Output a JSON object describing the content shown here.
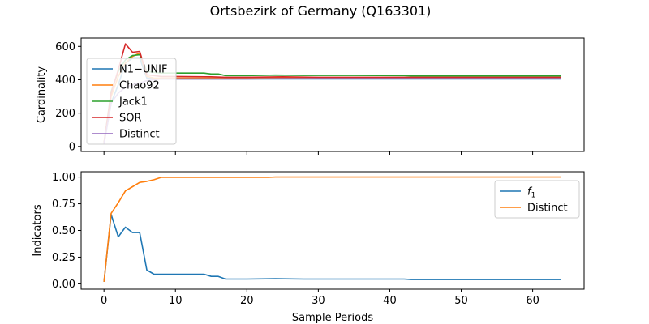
{
  "figure": {
    "suptitle": "Ortsbezirk of Germany (Q163301)"
  },
  "chart_data": [
    {
      "type": "line",
      "ylabel": "Cardinality",
      "xlim": [
        -3.2,
        67.2
      ],
      "ylim": [
        -30,
        650
      ],
      "yticks": [
        0,
        200,
        400,
        600
      ],
      "xticks": [
        0,
        10,
        20,
        30,
        40,
        50,
        60
      ],
      "show_xticklabels": false,
      "legend": {
        "position": "upper-left"
      },
      "series": [
        {
          "name": "N1−UNIF",
          "color": "#1f77b4",
          "x": [
            0,
            1,
            2,
            3,
            4,
            5,
            6,
            7,
            8,
            10,
            15,
            17,
            20,
            25,
            30,
            40,
            50,
            64
          ],
          "y": [
            20,
            260,
            370,
            500,
            530,
            530,
            410,
            405,
            405,
            405,
            405,
            405,
            405,
            405,
            405,
            405,
            405,
            405
          ]
        },
        {
          "name": "Chao92",
          "color": "#ff7f0e",
          "x": [
            0,
            1,
            2,
            3,
            4,
            5,
            6,
            7,
            8,
            10,
            15,
            17,
            20,
            25,
            30,
            40,
            50,
            64
          ],
          "y": [
            20,
            300,
            420,
            500,
            540,
            560,
            420,
            410,
            410,
            410,
            410,
            410,
            410,
            412,
            412,
            412,
            412,
            412
          ]
        },
        {
          "name": "Jack1",
          "color": "#2ca02c",
          "x": [
            0,
            1,
            2,
            3,
            4,
            5,
            6,
            7,
            8,
            10,
            12,
            14,
            15,
            16,
            17,
            20,
            24,
            28,
            35,
            42,
            43,
            50,
            64
          ],
          "y": [
            20,
            330,
            450,
            520,
            545,
            550,
            450,
            445,
            440,
            440,
            440,
            440,
            435,
            435,
            425,
            425,
            428,
            426,
            426,
            425,
            423,
            423,
            423
          ]
        },
        {
          "name": "SOR",
          "color": "#d62728",
          "x": [
            0,
            1,
            2,
            3,
            4,
            5,
            6,
            7,
            8,
            10,
            15,
            17,
            20,
            25,
            30,
            40,
            50,
            64
          ],
          "y": [
            20,
            320,
            460,
            615,
            565,
            570,
            430,
            425,
            420,
            420,
            418,
            415,
            415,
            418,
            415,
            415,
            415,
            415
          ]
        },
        {
          "name": "Distinct",
          "color": "#9467bd",
          "x": [
            0,
            1,
            2,
            3,
            4,
            5,
            6,
            7,
            8,
            10,
            15,
            17,
            20,
            25,
            30,
            40,
            50,
            64
          ],
          "y": [
            15,
            260,
            320,
            355,
            370,
            380,
            395,
            400,
            405,
            405,
            405,
            405,
            405,
            407,
            407,
            407,
            407,
            407
          ]
        }
      ]
    },
    {
      "type": "line",
      "ylabel": "Indicators",
      "xlabel": "Sample Periods",
      "xlim": [
        -3.2,
        67.2
      ],
      "ylim": [
        -0.05,
        1.05
      ],
      "yticks": [
        0.0,
        0.25,
        0.5,
        0.75,
        1.0
      ],
      "ytick_labels": [
        "0.00",
        "0.25",
        "0.50",
        "0.75",
        "1.00"
      ],
      "xticks": [
        0,
        10,
        20,
        30,
        40,
        50,
        60
      ],
      "show_xticklabels": true,
      "legend": {
        "position": "right"
      },
      "series": [
        {
          "name": "f",
          "name_sub": "1",
          "color": "#1f77b4",
          "x": [
            0,
            1,
            2,
            3,
            4,
            5,
            6,
            7,
            8,
            10,
            12,
            14,
            15,
            16,
            17,
            20,
            24,
            28,
            42,
            43,
            50,
            64
          ],
          "y": [
            0.02,
            0.65,
            0.44,
            0.53,
            0.48,
            0.48,
            0.13,
            0.09,
            0.09,
            0.09,
            0.09,
            0.09,
            0.07,
            0.07,
            0.045,
            0.045,
            0.048,
            0.045,
            0.045,
            0.04,
            0.04,
            0.04
          ]
        },
        {
          "name": "Distinct",
          "color": "#ff7f0e",
          "x": [
            0,
            1,
            2,
            3,
            4,
            5,
            6,
            7,
            8,
            10,
            15,
            20,
            23,
            24,
            30,
            40,
            50,
            64
          ],
          "y": [
            0.02,
            0.66,
            0.76,
            0.87,
            0.91,
            0.95,
            0.96,
            0.975,
            0.997,
            0.997,
            0.997,
            0.997,
            0.997,
            1.0,
            1.0,
            1.0,
            1.0,
            1.0
          ]
        }
      ]
    }
  ]
}
